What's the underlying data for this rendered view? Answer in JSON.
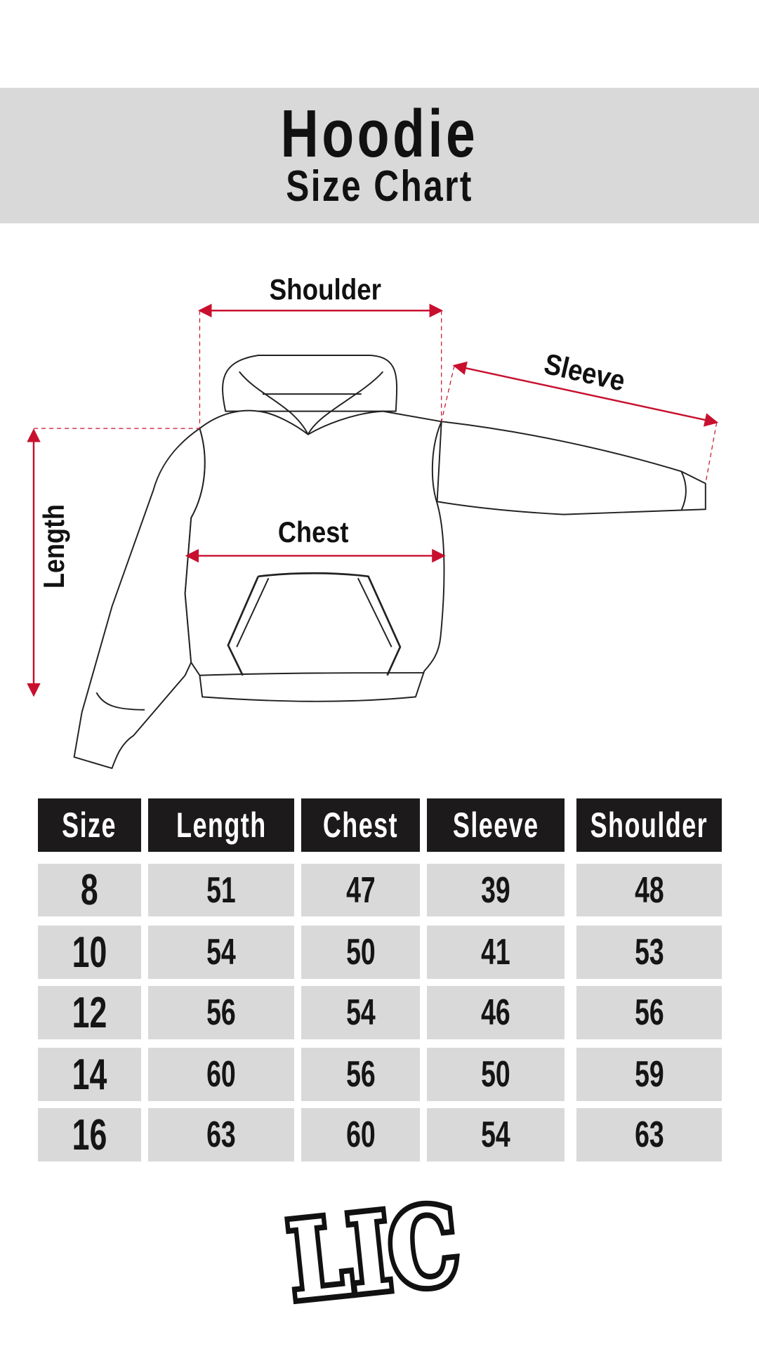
{
  "header": {
    "title": "Hoodie",
    "subtitle": "Size Chart",
    "band_color": "#d9d9d9"
  },
  "diagram": {
    "labels": {
      "shoulder": "Shoulder",
      "sleeve": "Sleeve",
      "length": "Length",
      "chest": "Chest"
    },
    "arrow_color": "#c8102e",
    "icon": "hoodie-outline"
  },
  "table": {
    "columns": [
      "Size",
      "Length",
      "Chest",
      "Sleeve",
      "Shoulder"
    ],
    "rows": [
      [
        "8",
        "51",
        "47",
        "39",
        "48"
      ],
      [
        "10",
        "54",
        "50",
        "41",
        "53"
      ],
      [
        "12",
        "56",
        "54",
        "46",
        "56"
      ],
      [
        "14",
        "60",
        "56",
        "50",
        "59"
      ],
      [
        "16",
        "63",
        "60",
        "54",
        "63"
      ]
    ],
    "header_color": "#1c1a1b",
    "cell_color": "#d9d9d9"
  },
  "logo": {
    "text": "LIC"
  }
}
